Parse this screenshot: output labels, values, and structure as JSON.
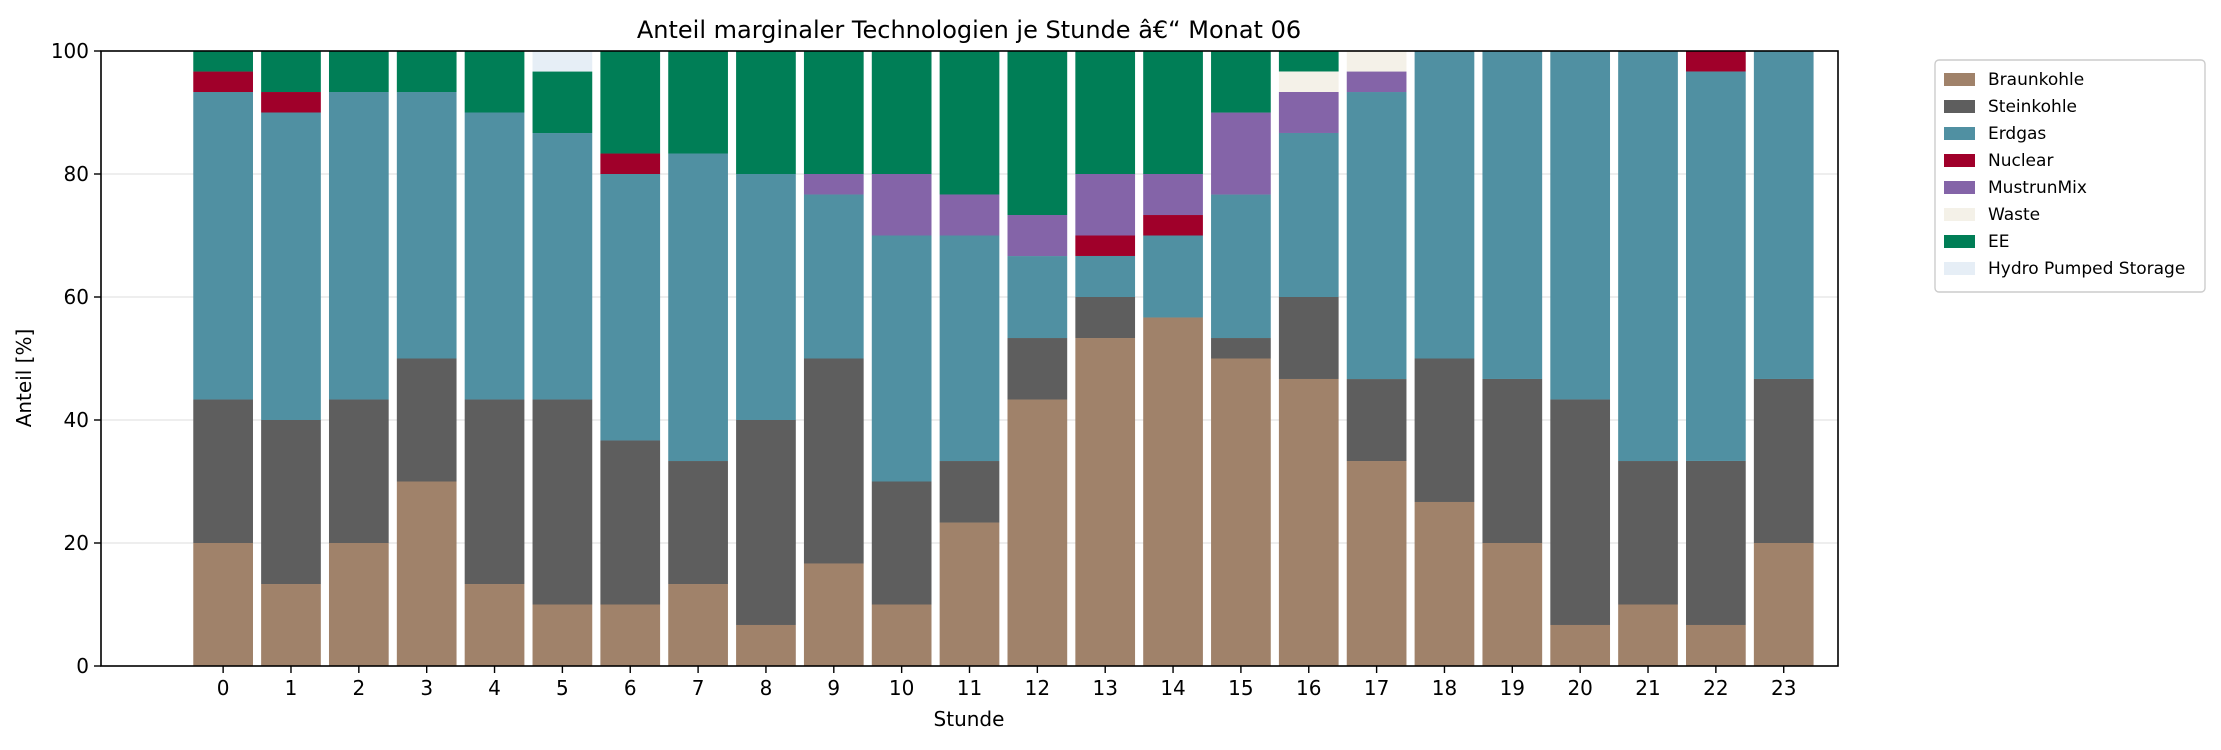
{
  "chart_data": {
    "type": "bar",
    "stacked": true,
    "title": "Anteil marginaler Technologien je Stunde â€“ Monat 06",
    "xlabel": "Stunde",
    "ylabel": "Anteil [%]",
    "ylim": [
      0,
      100
    ],
    "yticks": [
      0,
      20,
      40,
      60,
      80,
      100
    ],
    "grid": "horizontal",
    "legend_position": "outside-top-right",
    "categories": [
      "0",
      "1",
      "2",
      "3",
      "4",
      "5",
      "6",
      "7",
      "8",
      "9",
      "10",
      "11",
      "12",
      "13",
      "14",
      "15",
      "16",
      "17",
      "18",
      "19",
      "20",
      "21",
      "22",
      "23"
    ],
    "series": [
      {
        "name": "Braunkohle",
        "color": "#A0826A",
        "values": [
          20,
          13.33,
          20,
          30,
          13.33,
          10,
          10,
          13.33,
          6.67,
          16.67,
          10,
          23.33,
          43.33,
          53.33,
          56.67,
          50,
          46.67,
          33.33,
          26.67,
          20,
          6.67,
          10,
          6.67,
          20
        ]
      },
      {
        "name": "Steinkohle",
        "color": "#5E5E5E",
        "values": [
          23.33,
          26.67,
          23.33,
          20,
          30,
          33.33,
          26.67,
          20,
          33.33,
          33.33,
          20,
          10,
          10,
          6.67,
          0,
          3.33,
          13.33,
          13.33,
          23.33,
          26.67,
          36.67,
          23.33,
          26.67,
          26.67
        ]
      },
      {
        "name": "Erdgas",
        "color": "#5090A2",
        "values": [
          50,
          50,
          50,
          43.33,
          46.67,
          43.33,
          43.33,
          50,
          40,
          26.67,
          40,
          36.67,
          13.33,
          6.67,
          13.33,
          23.33,
          26.67,
          46.67,
          50,
          53.33,
          56.67,
          66.67,
          63.33,
          53.33
        ]
      },
      {
        "name": "Nuclear",
        "color": "#A0002A",
        "values": [
          3.33,
          3.33,
          0,
          0,
          0,
          0,
          3.33,
          0,
          0,
          0,
          0,
          0,
          0,
          3.33,
          3.33,
          0,
          0,
          0,
          0,
          0,
          0,
          0,
          3.33,
          0
        ]
      },
      {
        "name": "MustrunMix",
        "color": "#8464A8",
        "values": [
          0,
          0,
          0,
          0,
          0,
          0,
          0,
          0,
          0,
          3.33,
          10,
          6.67,
          6.67,
          10,
          6.67,
          13.33,
          6.67,
          3.33,
          0,
          0,
          0,
          0,
          0,
          0
        ]
      },
      {
        "name": "Waste",
        "color": "#F4F1E8",
        "values": [
          0,
          0,
          0,
          0,
          0,
          0,
          0,
          0,
          0,
          0,
          0,
          0,
          0,
          0,
          0,
          0,
          3.33,
          3.33,
          0,
          0,
          0,
          0,
          0,
          0
        ]
      },
      {
        "name": "EE",
        "color": "#007E56",
        "values": [
          3.33,
          6.67,
          6.67,
          6.67,
          10,
          10,
          16.67,
          16.67,
          20,
          20,
          20,
          23.33,
          26.67,
          20,
          20,
          10,
          3.33,
          0,
          0,
          0,
          0,
          0,
          0,
          0
        ]
      },
      {
        "name": "Hydro Pumped Storage",
        "color": "#E6EEF6",
        "values": [
          0,
          0,
          0,
          0,
          0,
          3.33,
          0,
          0,
          0,
          0,
          0,
          0,
          0,
          0,
          0,
          0,
          0,
          0,
          0,
          0,
          0,
          0,
          0,
          0
        ]
      }
    ]
  }
}
